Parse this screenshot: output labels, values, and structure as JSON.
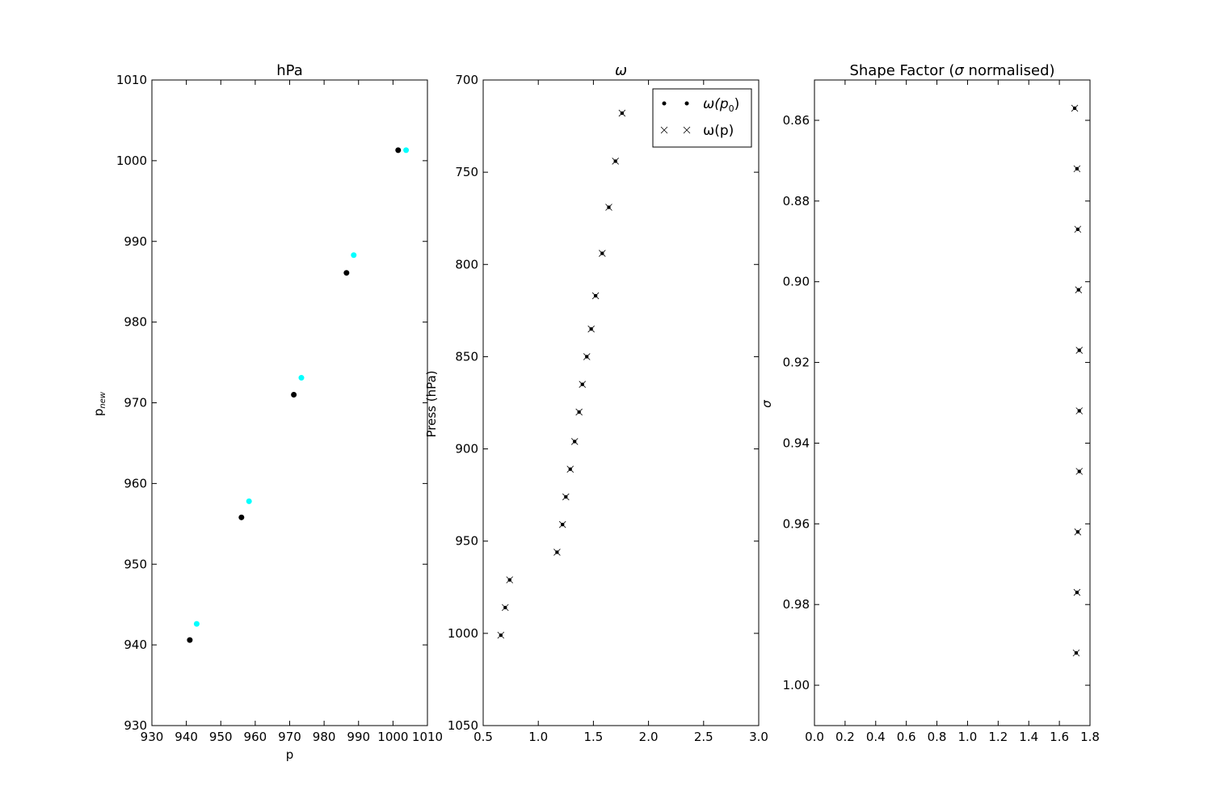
{
  "chart_data": [
    {
      "type": "scatter",
      "title": "hPa",
      "xlabel": "p",
      "ylabel": "p",
      "ylabel_subscript": "new",
      "xlim": [
        930,
        1010
      ],
      "ylim": [
        930,
        1010
      ],
      "xticks": [
        "930",
        "940",
        "950",
        "960",
        "970",
        "980",
        "990",
        "1000",
        "1010"
      ],
      "yticks": [
        "930",
        "940",
        "950",
        "960",
        "970",
        "980",
        "990",
        "1000",
        "1010"
      ],
      "series": [
        {
          "color": "#000000",
          "x": [
            941,
            956,
            971.2,
            986.5,
            1001.5
          ],
          "y": [
            940.6,
            955.8,
            971,
            986.1,
            1001.3
          ]
        },
        {
          "color": "#00ffff",
          "x": [
            943,
            958.2,
            973.4,
            988.6,
            1003.8
          ],
          "y": [
            942.6,
            957.8,
            973.1,
            988.3,
            1001.3
          ]
        }
      ]
    },
    {
      "type": "scatter",
      "title": "ω",
      "xlabel": "",
      "ylabel": "Press (hPa)",
      "xlim": [
        0.5,
        3.0
      ],
      "ylim": [
        1050,
        700
      ],
      "y_inverted": true,
      "xticks": [
        "0.5",
        "1.0",
        "1.5",
        "2.0",
        "2.5",
        "3.0"
      ],
      "yticks": [
        "700",
        "750",
        "800",
        "850",
        "900",
        "950",
        "1000",
        "1050"
      ],
      "legend_position": "upper-right",
      "series": [
        {
          "name": "ω(p",
          "name_subscript": "0",
          "name_suffix": ")",
          "marker": "dot",
          "x": [
            0.66,
            0.7,
            0.74,
            1.17,
            1.22,
            1.25,
            1.29,
            1.33,
            1.37,
            1.4,
            1.44,
            1.48,
            1.52,
            1.58,
            1.64,
            1.7,
            1.76
          ],
          "y": [
            1001,
            986,
            971,
            956,
            941,
            926,
            911,
            896,
            880,
            865,
            850,
            835,
            817,
            794,
            769,
            744,
            718
          ]
        },
        {
          "name": "ω(p)",
          "marker": "x",
          "x": [
            0.66,
            0.7,
            0.74,
            1.17,
            1.22,
            1.25,
            1.29,
            1.33,
            1.37,
            1.4,
            1.44,
            1.48,
            1.52,
            1.58,
            1.64,
            1.7,
            1.76
          ],
          "y": [
            1001,
            986,
            971,
            956,
            941,
            926,
            911,
            896,
            880,
            865,
            850,
            835,
            817,
            794,
            769,
            744,
            718
          ]
        }
      ]
    },
    {
      "type": "scatter",
      "title_pre": "Shape Factor (",
      "title_sym": "σ",
      "title_post": " normalised)",
      "xlabel": "",
      "ylabel": "σ",
      "xlim": [
        0.0,
        1.8
      ],
      "ylim": [
        1.01,
        0.85
      ],
      "y_inverted": true,
      "xticks": [
        "0.0",
        "0.2",
        "0.4",
        "0.6",
        "0.8",
        "1.0",
        "1.2",
        "1.4",
        "1.6",
        "1.8"
      ],
      "yticks": [
        "0.86",
        "0.88",
        "0.90",
        "0.92",
        "0.94",
        "0.96",
        "0.98",
        "1.00"
      ],
      "series": [
        {
          "marker": "dot+x",
          "x": [
            1.7,
            1.715,
            1.72,
            1.725,
            1.73,
            1.73,
            1.73,
            1.72,
            1.715,
            1.71
          ],
          "y": [
            0.857,
            0.872,
            0.887,
            0.902,
            0.917,
            0.932,
            0.947,
            0.962,
            0.977,
            0.992
          ]
        }
      ]
    }
  ]
}
